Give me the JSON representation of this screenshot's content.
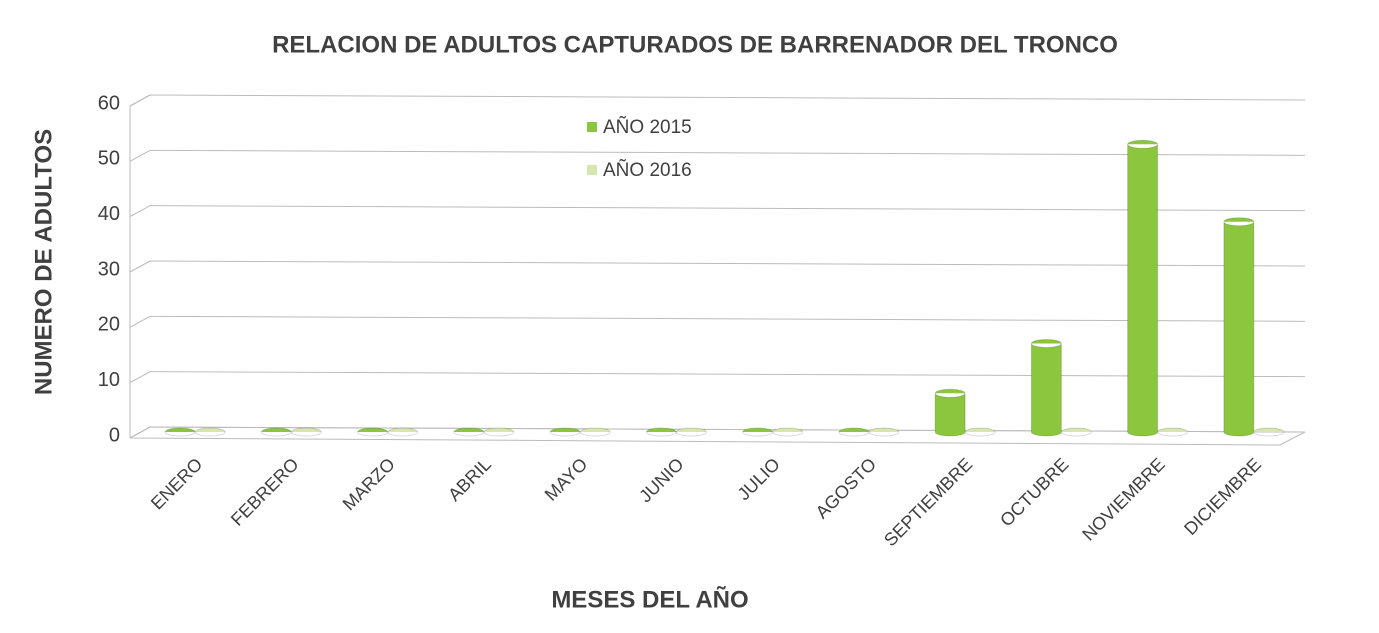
{
  "chart_data": {
    "type": "bar3d",
    "title": "RELACION DE ADULTOS CAPTURADOS DE BARRENADOR DEL TRONCO",
    "x_label": "MESES DEL AÑO",
    "y_label": "NUMERO DE ADULTOS",
    "categories": [
      "ENERO",
      "FEBRERO",
      "MARZO",
      "ABRIL",
      "MAYO",
      "JUNIO",
      "JULIO",
      "AGOSTO",
      "SEPTIEMBRE",
      "OCTUBRE",
      "NOVIEMBRE",
      "DICIEMBRE"
    ],
    "series": [
      {
        "name": "AÑO 2015",
        "color": "#8cc63f",
        "values": [
          0,
          0,
          0,
          0,
          0,
          0,
          0,
          0,
          7,
          16,
          52,
          38
        ]
      },
      {
        "name": "AÑO 2016",
        "color": "#d6e6ae",
        "values": [
          0,
          0,
          0,
          0,
          0,
          0,
          0,
          0,
          0,
          0,
          0,
          0
        ]
      }
    ],
    "ylim": [
      0,
      60
    ],
    "yticks": [
      0,
      10,
      20,
      30,
      40,
      50,
      60
    ],
    "grid": true
  }
}
